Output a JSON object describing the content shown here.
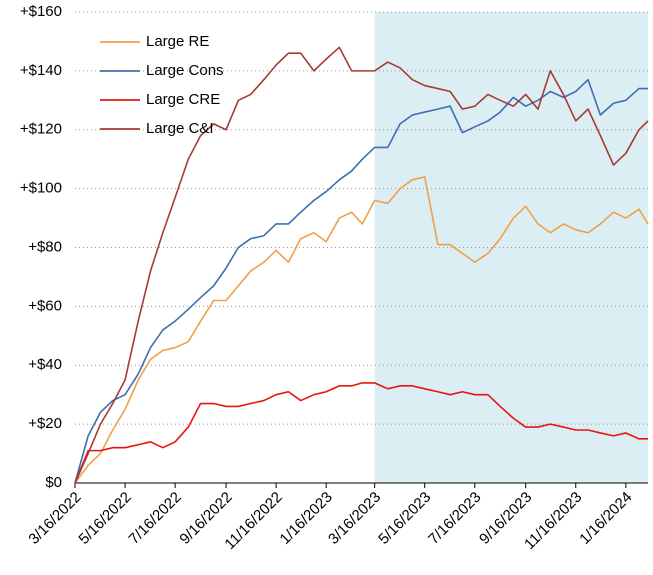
{
  "chart_data": {
    "type": "line",
    "x": [
      "3/16/2022",
      "4/1/2022",
      "4/16/2022",
      "5/1/2022",
      "5/16/2022",
      "6/1/2022",
      "6/16/2022",
      "7/1/2022",
      "7/16/2022",
      "8/1/2022",
      "8/16/2022",
      "9/1/2022",
      "9/16/2022",
      "10/1/2022",
      "10/16/2022",
      "11/1/2022",
      "11/16/2022",
      "12/1/2022",
      "12/16/2022",
      "1/1/2023",
      "1/16/2023",
      "2/1/2023",
      "2/16/2023",
      "3/1/2023",
      "3/16/2023",
      "4/1/2023",
      "4/16/2023",
      "5/1/2023",
      "5/16/2023",
      "6/1/2023",
      "6/16/2023",
      "7/1/2023",
      "7/16/2023",
      "8/1/2023",
      "8/16/2023",
      "9/1/2023",
      "9/16/2023",
      "10/1/2023",
      "10/16/2023",
      "11/1/2023",
      "11/16/2023",
      "12/1/2023",
      "12/16/2023",
      "1/1/2024",
      "1/16/2024",
      "2/1/2024",
      "2/12/2024"
    ],
    "series": [
      {
        "name": "Large RE",
        "color": "#f0a04b",
        "values": [
          0,
          6,
          10,
          18,
          25,
          35,
          42,
          45,
          46,
          48,
          55,
          62,
          62,
          67,
          72,
          75,
          79,
          75,
          83,
          85,
          82,
          90,
          92,
          88,
          96,
          95,
          100,
          103,
          104,
          81,
          81,
          78,
          75,
          78,
          83,
          90,
          94,
          88,
          85,
          88,
          86,
          85,
          88,
          92,
          90,
          93,
          88
        ]
      },
      {
        "name": "Large Cons",
        "color": "#3d6eaf",
        "values": [
          0,
          16,
          24,
          28,
          30,
          37,
          46,
          52,
          55,
          59,
          63,
          67,
          73,
          80,
          83,
          84,
          88,
          88,
          92,
          96,
          99,
          103,
          106,
          110,
          114,
          114,
          122,
          125,
          126,
          127,
          128,
          119,
          121,
          123,
          126,
          131,
          128,
          130,
          133,
          131,
          133,
          137,
          125,
          129,
          130,
          134,
          134
        ]
      },
      {
        "name": "Large CRE",
        "color": "#e8150f",
        "values": [
          0,
          11,
          11,
          12,
          12,
          13,
          14,
          12,
          14,
          19,
          27,
          27,
          26,
          26,
          27,
          28,
          30,
          31,
          28,
          30,
          31,
          33,
          33,
          34,
          34,
          32,
          33,
          33,
          32,
          31,
          30,
          31,
          30,
          30,
          26,
          22,
          19,
          19,
          20,
          19,
          18,
          18,
          17,
          16,
          17,
          15,
          15
        ]
      },
      {
        "name": "Large C&I",
        "color": "#a83a32",
        "values": [
          0,
          10,
          20,
          27,
          35,
          55,
          72,
          85,
          97,
          110,
          118,
          122,
          120,
          130,
          132,
          137,
          142,
          146,
          146,
          140,
          144,
          148,
          140,
          140,
          140,
          143,
          141,
          137,
          135,
          134,
          133,
          127,
          128,
          132,
          130,
          128,
          132,
          127,
          140,
          132,
          123,
          127,
          118,
          108,
          112,
          120,
          123
        ]
      }
    ],
    "xlim": [
      "3/16/2022",
      "2/12/2024"
    ],
    "xticks": [
      "3/16/2022",
      "5/16/2022",
      "7/16/2022",
      "9/16/2022",
      "11/16/2022",
      "1/16/2023",
      "3/16/2023",
      "5/16/2023",
      "7/16/2023",
      "9/16/2023",
      "11/16/2023",
      "1/16/2024"
    ],
    "ylim": [
      0,
      160
    ],
    "yticks": [
      {
        "value": 0,
        "label": "$0"
      },
      {
        "value": 20,
        "label": "+$20"
      },
      {
        "value": 40,
        "label": "+$40"
      },
      {
        "value": 60,
        "label": "+$60"
      },
      {
        "value": 80,
        "label": "+$80"
      },
      {
        "value": 100,
        "label": "+$100"
      },
      {
        "value": 120,
        "label": "+$120"
      },
      {
        "value": 140,
        "label": "+$140"
      },
      {
        "value": 160,
        "label": "+$160"
      }
    ],
    "grid": true,
    "highlight_from": "3/16/2023",
    "highlight_color": "#dbeef4",
    "legend": "upper left"
  }
}
